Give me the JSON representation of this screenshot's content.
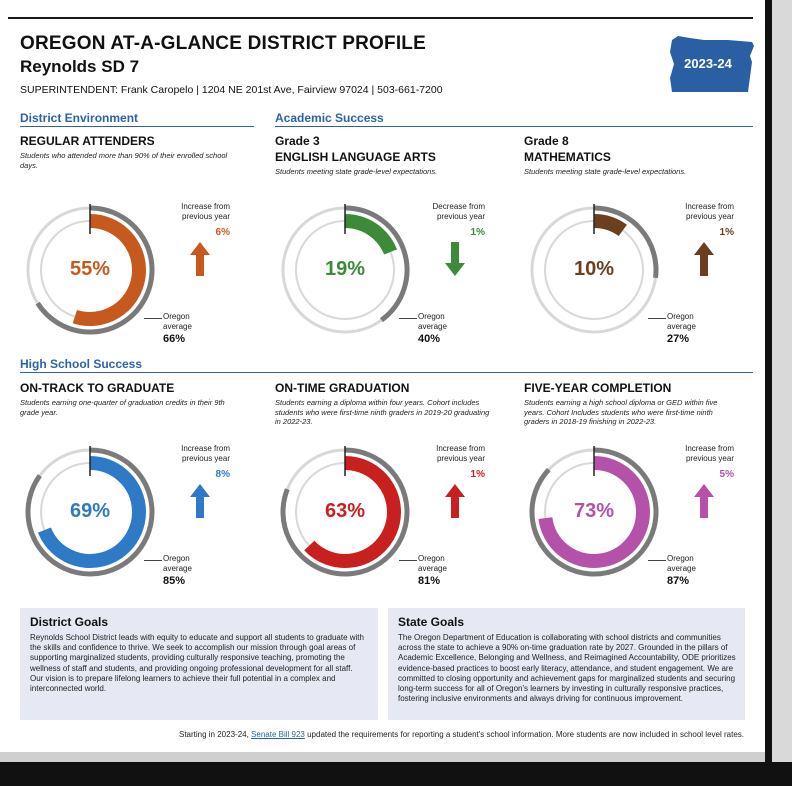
{
  "header": {
    "title": "OREGON AT-A-GLANCE DISTRICT PROFILE",
    "district": "Reynolds SD 7",
    "superintendent": "SUPERINTENDENT: Frank Caropelo  |  1204 NE 201st Ave, Fairview 97024 | 503-661-7200",
    "year": "2023-24"
  },
  "sections": {
    "district_env": "District Environment",
    "academic": "Academic Success",
    "high_school": "High School Success"
  },
  "cards": [
    {
      "grade": "",
      "title": "REGULAR ATTENDERS",
      "desc": "Students who attended more than 90% of their enrolled school days.",
      "percent": "55%",
      "value": 55,
      "color": "#c65a1e",
      "change_label": "Increase from previous year",
      "change_value": "6%",
      "direction": "up",
      "avg_label": "Oregon average",
      "avg_value": "66%",
      "avg": 66
    },
    {
      "grade": "Grade 3",
      "title": "ENGLISH LANGUAGE ARTS",
      "desc": "Students meeting state grade-level expectations.",
      "percent": "19%",
      "value": 19,
      "color": "#3c8a3a",
      "change_label": "Decrease from previous year",
      "change_value": "1%",
      "direction": "down",
      "avg_label": "Oregon average",
      "avg_value": "40%",
      "avg": 40
    },
    {
      "grade": "Grade 8",
      "title": "MATHEMATICS",
      "desc": "Students meeting state grade-level expectations.",
      "percent": "10%",
      "value": 10,
      "color": "#6b4020",
      "change_label": "Increase from previous year",
      "change_value": "1%",
      "direction": "up",
      "avg_label": "Oregon average",
      "avg_value": "27%",
      "avg": 27
    },
    {
      "grade": "",
      "title": "ON-TRACK TO GRADUATE",
      "desc": "Students earning one-quarter of graduation credits in their 9th grade year.",
      "percent": "69%",
      "value": 69,
      "color": "#2f7ac6",
      "change_label": "Increase from previous year",
      "change_value": "8%",
      "direction": "up",
      "avg_label": "Oregon average",
      "avg_value": "85%",
      "avg": 85
    },
    {
      "grade": "",
      "title": "ON-TIME GRADUATION",
      "desc": "Students earning a diploma within four years. Cohort includes students who were first-time ninth graders in 2019-20 graduating in 2022-23.",
      "percent": "63%",
      "value": 63,
      "color": "#c8201e",
      "change_label": "Increase from previous year",
      "change_value": "1%",
      "direction": "up",
      "avg_label": "Oregon average",
      "avg_value": "81%",
      "avg": 81
    },
    {
      "grade": "",
      "title": "FIVE-YEAR COMPLETION",
      "desc": "Students earning a high school diploma or GED within five years. Cohort Includes students who were first-time ninth graders in 2018-19 finishing in 2022-23.",
      "percent": "73%",
      "value": 73,
      "color": "#b352a8",
      "change_label": "Increase from previous year",
      "change_value": "5%",
      "direction": "up",
      "avg_label": "Oregon average",
      "avg_value": "87%",
      "avg": 87
    }
  ],
  "district_goals": {
    "title": "District Goals",
    "body": "Reynolds School District leads with equity to educate and support all students to graduate with the skills and confidence to thrive. We seek to accomplish our mission through goal areas of supporting marginalized students, providing culturally responsive teaching, promoting the wellness of staff and students, and providing ongoing professional development for all staff. Our vision is to prepare lifelong learners to achieve their full potential in a complex and interconnected world."
  },
  "state_goals": {
    "title": "State Goals",
    "body": "The Oregon Department of Education is collaborating with school districts and communities across the state to achieve a 90% on-time graduation rate by 2027. Grounded in the pillars of Academic Excellence, Belonging and Wellness, and Reimagined Accountability, ODE prioritizes evidence-based practices to boost early literacy, attendance, and student engagement. We are committed to closing opportunity and achievement gaps for marginalized students and securing long-term success for all of Oregon's learners by investing in culturally responsive practices, fostering inclusive environments and always driving for continuous improvement."
  },
  "footer": {
    "prefix": "Starting in 2023-24,",
    "link": "Senate Bill 923",
    "suffix": "updated the requirements for reporting a student's school information. More students are now included in school level rates."
  },
  "colors": {
    "accent": "#2a64a8",
    "track": "#d8d8d8",
    "avg_ring": "#7a7a7a",
    "badge": "#2a5fa3"
  }
}
